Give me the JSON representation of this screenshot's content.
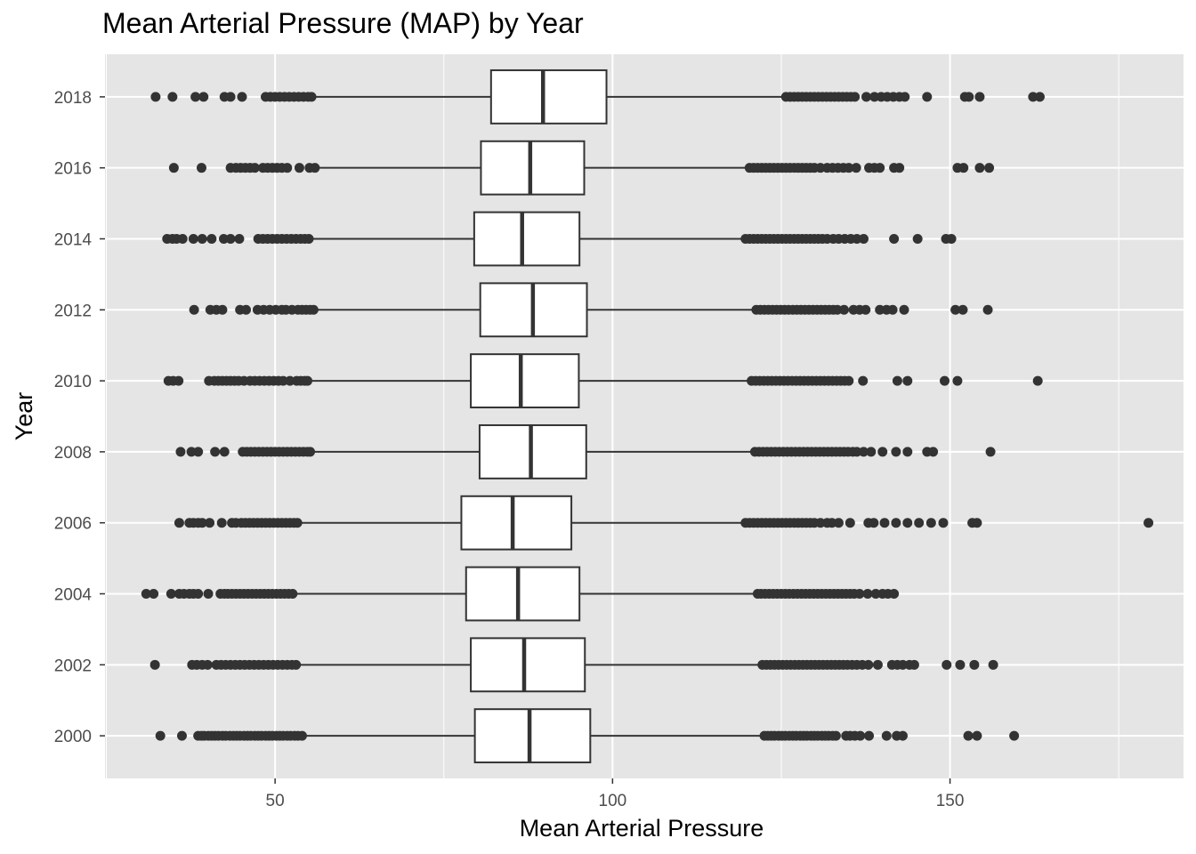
{
  "chart_data": {
    "type": "boxplot",
    "orientation": "horizontal",
    "title": "Mean Arterial Pressure (MAP) by Year",
    "xlabel": "Mean Arterial Pressure",
    "ylabel": "Year",
    "xlim": [
      24.8,
      184.6
    ],
    "x_ticks": [
      50,
      100,
      150
    ],
    "x_tick_labels": [
      "50",
      "100",
      "150"
    ],
    "grid": true,
    "categories": [
      "2000",
      "2002",
      "2004",
      "2006",
      "2008",
      "2010",
      "2012",
      "2014",
      "2016",
      "2018"
    ],
    "boxes": [
      {
        "year": "2000",
        "whisker_low": 54.4,
        "q1": 79.6,
        "median": 87.7,
        "q3": 96.7,
        "whisker_high": 122.0,
        "outliers_low": [
          33.0,
          36.2,
          38.6,
          39.1,
          39.5,
          40.1,
          40.6,
          41.1,
          41.6,
          42.2,
          42.7,
          43.3,
          43.8,
          44.3,
          44.8,
          45.4,
          45.9,
          46.4,
          47.0,
          47.5,
          48.0,
          48.6,
          49.1,
          49.6,
          50.2,
          50.7,
          51.2,
          51.8,
          52.3,
          52.9,
          53.4,
          54.0
        ],
        "outliers_high": [
          122.5,
          123.0,
          123.5,
          124.0,
          124.6,
          125.1,
          125.6,
          126.2,
          126.7,
          127.2,
          127.8,
          128.3,
          128.8,
          129.4,
          129.9,
          130.4,
          131.0,
          131.5,
          132.0,
          132.6,
          133.1,
          134.6,
          135.2,
          135.9,
          136.7,
          138.0,
          140.6,
          142.1,
          143.0,
          152.7,
          154.0,
          159.5
        ]
      },
      {
        "year": "2002",
        "whisker_low": 53.6,
        "q1": 79.0,
        "median": 86.9,
        "q3": 95.9,
        "whisker_high": 121.6,
        "outliers_low": [
          32.2,
          37.7,
          38.4,
          39.2,
          40.0,
          41.3,
          42.0,
          42.7,
          43.4,
          44.1,
          44.8,
          45.5,
          46.2,
          46.9,
          47.6,
          48.3,
          49.0,
          49.7,
          50.4,
          51.1,
          51.8,
          52.5,
          53.1
        ],
        "outliers_high": [
          122.2,
          122.8,
          123.4,
          124.0,
          124.6,
          125.2,
          125.8,
          126.4,
          127.0,
          127.6,
          128.2,
          128.8,
          129.4,
          130.0,
          130.6,
          131.2,
          131.8,
          132.4,
          133.0,
          133.6,
          134.2,
          134.8,
          135.5,
          136.2,
          137.0,
          137.9,
          139.3,
          141.4,
          142.2,
          143.0,
          144.0,
          144.7,
          149.5,
          151.5,
          153.6,
          156.4
        ]
      },
      {
        "year": "2004",
        "whisker_low": 53.1,
        "q1": 78.3,
        "median": 86.0,
        "q3": 95.1,
        "whisker_high": 121.0,
        "outliers_low": [
          30.9,
          32.0,
          34.6,
          35.8,
          36.5,
          37.3,
          37.9,
          38.6,
          40.1,
          41.9,
          42.5,
          43.0,
          43.6,
          44.2,
          44.8,
          45.4,
          46.0,
          46.6,
          47.2,
          47.8,
          48.4,
          49.0,
          49.6,
          50.2,
          50.8,
          51.4,
          52.0,
          52.6
        ],
        "outliers_high": [
          121.5,
          122.0,
          122.6,
          123.2,
          123.8,
          124.4,
          125.0,
          125.6,
          126.2,
          126.8,
          127.4,
          128.0,
          128.6,
          129.2,
          129.8,
          130.4,
          131.0,
          131.6,
          132.2,
          132.8,
          133.4,
          134.0,
          134.6,
          135.2,
          135.8,
          136.6,
          137.8,
          139.0,
          140.0,
          140.8,
          141.7
        ]
      },
      {
        "year": "2006",
        "whisker_low": 53.6,
        "q1": 77.6,
        "median": 85.2,
        "q3": 93.9,
        "whisker_high": 119.2,
        "outliers_low": [
          35.8,
          37.3,
          37.9,
          38.6,
          39.2,
          40.3,
          42.1,
          43.6,
          44.2,
          45.0,
          45.6,
          46.2,
          46.8,
          47.4,
          48.0,
          48.6,
          49.2,
          49.8,
          50.4,
          51.0,
          51.6,
          52.2,
          52.8,
          53.3
        ],
        "outliers_high": [
          119.7,
          120.3,
          120.9,
          121.5,
          122.1,
          122.7,
          123.3,
          123.9,
          124.5,
          125.1,
          125.7,
          126.3,
          126.9,
          127.5,
          128.1,
          128.7,
          129.3,
          129.9,
          130.8,
          131.8,
          132.5,
          133.5,
          135.2,
          137.9,
          138.7,
          140.3,
          142.0,
          143.7,
          145.4,
          147.2,
          149.0,
          153.3,
          154.0,
          179.4
        ]
      },
      {
        "year": "2008",
        "whisker_low": 55.5,
        "q1": 80.3,
        "median": 87.9,
        "q3": 96.1,
        "whisker_high": 120.6,
        "outliers_low": [
          36.0,
          37.6,
          38.6,
          41.1,
          42.5,
          45.2,
          45.8,
          46.4,
          47.0,
          47.6,
          48.2,
          48.8,
          49.4,
          50.0,
          50.6,
          51.2,
          51.8,
          52.4,
          53.0,
          53.6,
          54.2,
          54.8,
          55.2
        ],
        "outliers_high": [
          121.1,
          121.7,
          122.3,
          122.9,
          123.5,
          124.1,
          124.7,
          125.3,
          125.9,
          126.5,
          127.1,
          127.7,
          128.3,
          128.9,
          129.5,
          130.1,
          130.7,
          131.3,
          131.9,
          132.5,
          133.1,
          133.7,
          134.3,
          134.9,
          135.6,
          136.2,
          137.2,
          138.3,
          140.0,
          142.0,
          143.7,
          146.6,
          147.5,
          156.0
        ]
      },
      {
        "year": "2010",
        "whisker_low": 55.1,
        "q1": 79.0,
        "median": 86.4,
        "q3": 95.0,
        "whisker_high": 120.1,
        "outliers_low": [
          34.2,
          34.9,
          35.7,
          40.2,
          41.0,
          41.6,
          42.2,
          42.8,
          43.4,
          44.0,
          44.6,
          45.4,
          46.3,
          47.0,
          47.7,
          48.4,
          49.1,
          49.8,
          50.5,
          51.2,
          52.2,
          53.2,
          53.8,
          54.4,
          54.8
        ],
        "outliers_high": [
          120.6,
          121.2,
          121.8,
          122.4,
          123.0,
          123.6,
          124.2,
          124.8,
          125.4,
          126.0,
          126.6,
          127.2,
          127.8,
          128.4,
          129.0,
          129.6,
          130.2,
          130.8,
          131.4,
          132.0,
          132.6,
          133.2,
          133.8,
          134.4,
          135.0,
          137.1,
          142.2,
          143.7,
          149.2,
          151.1,
          163.0
        ]
      },
      {
        "year": "2012",
        "whisker_low": 56.1,
        "q1": 80.4,
        "median": 88.2,
        "q3": 96.2,
        "whisker_high": 120.8,
        "outliers_low": [
          38.0,
          40.4,
          41.3,
          42.2,
          44.8,
          45.7,
          47.4,
          48.3,
          49.2,
          50.1,
          51.0,
          51.6,
          52.5,
          53.4,
          54.0,
          54.6,
          55.2,
          55.7
        ],
        "outliers_high": [
          121.3,
          121.9,
          122.5,
          123.1,
          123.7,
          124.3,
          124.9,
          125.5,
          126.1,
          126.7,
          127.3,
          127.9,
          128.5,
          129.1,
          129.7,
          130.3,
          130.9,
          131.5,
          132.1,
          132.7,
          133.3,
          134.3,
          135.7,
          136.6,
          137.5,
          139.6,
          140.6,
          141.5,
          143.2,
          150.8,
          151.9,
          155.6
        ]
      },
      {
        "year": "2014",
        "whisker_low": 55.4,
        "q1": 79.5,
        "median": 86.6,
        "q3": 95.1,
        "whisker_high": 119.2,
        "outliers_low": [
          34.0,
          34.8,
          35.4,
          36.3,
          37.9,
          39.2,
          40.6,
          42.4,
          43.4,
          44.7,
          47.5,
          48.2,
          48.9,
          49.6,
          50.3,
          51.0,
          51.7,
          52.4,
          53.1,
          53.8,
          54.4,
          55.0
        ],
        "outliers_high": [
          119.7,
          120.3,
          120.9,
          121.5,
          122.1,
          122.7,
          123.3,
          123.9,
          124.5,
          125.1,
          125.7,
          126.3,
          126.9,
          127.5,
          128.1,
          128.7,
          129.3,
          129.9,
          130.5,
          131.1,
          131.8,
          132.7,
          133.5,
          134.4,
          135.3,
          136.2,
          137.2,
          141.7,
          145.2,
          149.4,
          150.2
        ]
      },
      {
        "year": "2016",
        "whisker_low": 56.4,
        "q1": 80.5,
        "median": 87.8,
        "q3": 95.8,
        "whisker_high": 119.8,
        "outliers_low": [
          35.0,
          39.1,
          43.4,
          44.2,
          44.9,
          45.6,
          46.3,
          47.0,
          48.2,
          48.9,
          49.6,
          50.3,
          51.0,
          51.8,
          53.6,
          55.1,
          55.9
        ],
        "outliers_high": [
          120.3,
          120.9,
          121.5,
          122.1,
          122.7,
          123.3,
          123.9,
          124.5,
          125.1,
          125.7,
          126.3,
          126.9,
          127.5,
          128.1,
          128.7,
          129.3,
          129.9,
          130.8,
          131.8,
          132.6,
          133.4,
          134.2,
          135.0,
          136.1,
          138.0,
          138.8,
          139.6,
          141.7,
          142.5,
          151.1,
          152.0,
          154.4,
          155.8
        ]
      },
      {
        "year": "2018",
        "whisker_low": 55.7,
        "q1": 82.0,
        "median": 89.7,
        "q3": 99.1,
        "whisker_high": 125.2,
        "outliers_low": [
          32.3,
          34.8,
          38.2,
          39.4,
          42.5,
          43.4,
          45.1,
          48.6,
          49.3,
          50.0,
          50.7,
          51.4,
          52.1,
          52.8,
          53.5,
          54.2,
          54.9,
          55.4
        ],
        "outliers_high": [
          125.7,
          126.3,
          126.9,
          127.5,
          128.1,
          128.7,
          129.3,
          129.9,
          130.5,
          131.1,
          131.7,
          132.3,
          132.9,
          133.5,
          134.1,
          134.7,
          135.3,
          135.9,
          137.6,
          138.8,
          139.8,
          140.7,
          141.6,
          142.5,
          143.3,
          146.6,
          152.2,
          152.8,
          154.4,
          162.3,
          163.3
        ]
      }
    ],
    "colors": {
      "panel_bg": "#e5e5e5",
      "grid": "#ffffff",
      "box_fill": "#ffffff",
      "stroke": "#333333",
      "point": "#333333",
      "axis_text": "#4d4d4d"
    }
  }
}
